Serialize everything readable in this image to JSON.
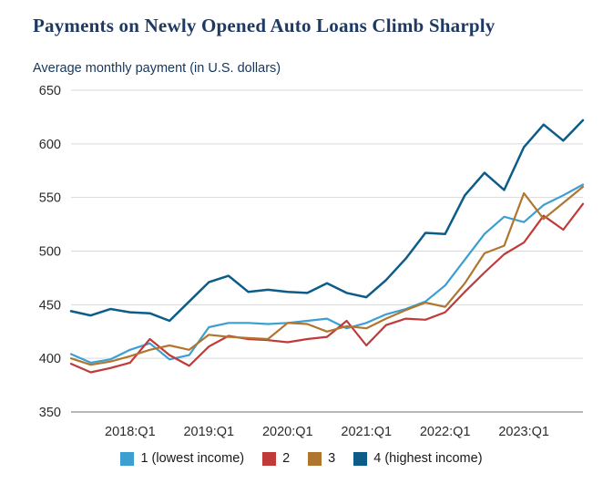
{
  "title": "Payments on Newly Opened Auto Loans Climb Sharply",
  "subtitle": "Average monthly payment (in U.S. dollars)",
  "style": {
    "title_color": "#1f3a62",
    "grid_color": "#d9d9d9",
    "axis_color": "#8c8c8c",
    "tick_text_color": "#2b2b2b"
  },
  "chart_data": {
    "type": "line",
    "x": [
      "2017:Q2",
      "2017:Q3",
      "2017:Q4",
      "2018:Q1",
      "2018:Q2",
      "2018:Q3",
      "2018:Q4",
      "2019:Q1",
      "2019:Q2",
      "2019:Q3",
      "2019:Q4",
      "2020:Q1",
      "2020:Q2",
      "2020:Q3",
      "2020:Q4",
      "2021:Q1",
      "2021:Q2",
      "2021:Q3",
      "2021:Q4",
      "2022:Q1",
      "2022:Q2",
      "2022:Q3",
      "2022:Q4",
      "2023:Q1",
      "2023:Q2",
      "2023:Q3",
      "2023:Q4"
    ],
    "x_tick_labels": [
      "2018:Q1",
      "2019:Q1",
      "2020:Q1",
      "2021:Q1",
      "2022:Q1",
      "2023:Q1"
    ],
    "ylim": [
      350,
      650
    ],
    "y_ticks": [
      350,
      400,
      450,
      500,
      550,
      600,
      650
    ],
    "grid": true,
    "legend_position": "bottom",
    "series": [
      {
        "name": "1 (lowest income)",
        "color": "#3b9fd2",
        "values": [
          404,
          396,
          399,
          408,
          414,
          399,
          403,
          429,
          433,
          433,
          432,
          433,
          435,
          437,
          428,
          433,
          441,
          446,
          453,
          468,
          492,
          516,
          532,
          527,
          543,
          552,
          562
        ]
      },
      {
        "name": "2",
        "color": "#c03a3a",
        "values": [
          395,
          387,
          391,
          396,
          418,
          403,
          393,
          411,
          421,
          418,
          417,
          415,
          418,
          420,
          435,
          412,
          431,
          437,
          436,
          443,
          462,
          480,
          497,
          508,
          533,
          520,
          544
        ]
      },
      {
        "name": "3",
        "color": "#b0762f",
        "values": [
          400,
          394,
          397,
          402,
          408,
          412,
          408,
          422,
          420,
          419,
          418,
          433,
          432,
          425,
          430,
          428,
          437,
          445,
          452,
          448,
          470,
          498,
          505,
          554,
          530,
          545,
          560
        ]
      },
      {
        "name": "4 (highest income)",
        "color": "#0d5c88",
        "values": [
          444,
          440,
          446,
          443,
          442,
          435,
          453,
          471,
          477,
          462,
          464,
          462,
          461,
          470,
          461,
          457,
          473,
          493,
          517,
          516,
          552,
          573,
          557,
          597,
          618,
          603,
          622
        ]
      }
    ]
  }
}
